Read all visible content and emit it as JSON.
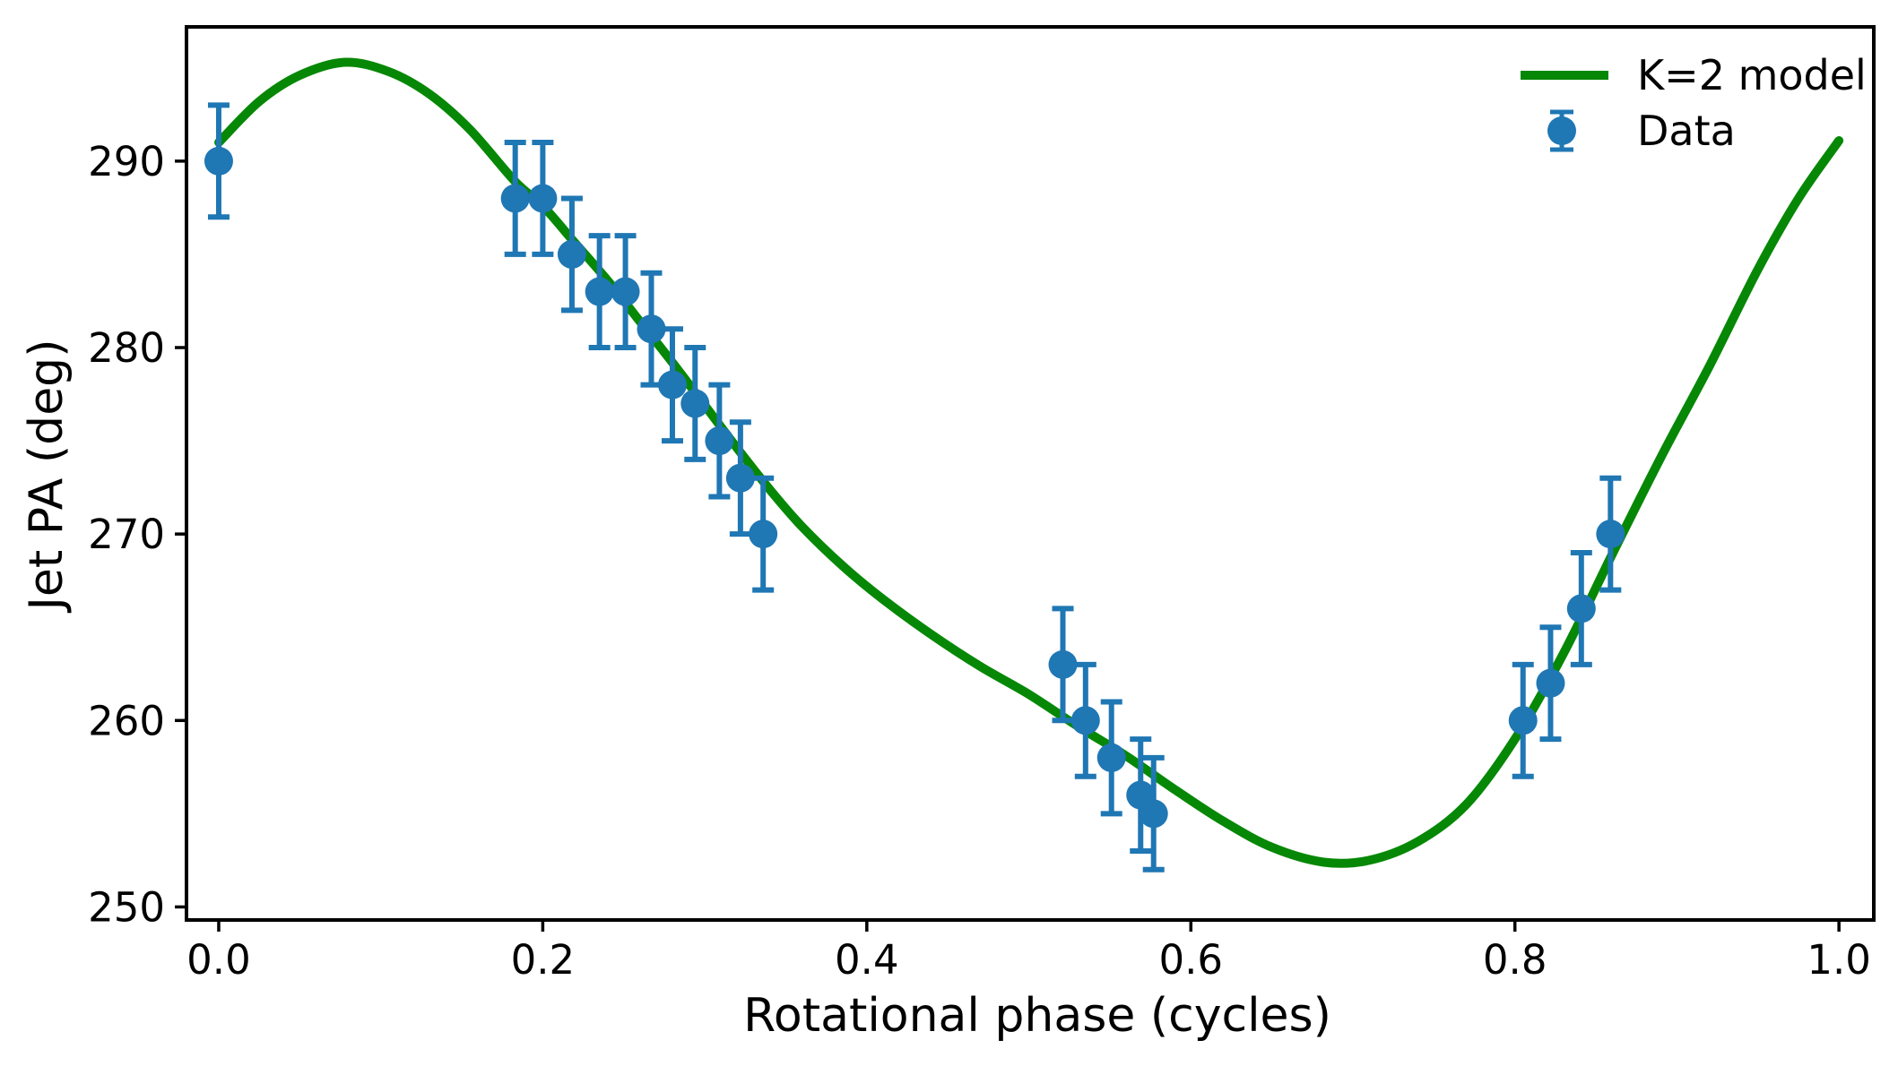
{
  "axes": {
    "xlabel": "Rotational phase (cycles)",
    "ylabel": "Jet PA (deg)",
    "xlim": [
      -0.0199,
      1.0215
    ],
    "ylim": [
      249.3,
      297.2
    ],
    "x_tick_values": [
      0.0,
      0.2,
      0.4,
      0.6,
      0.8,
      1.0
    ],
    "x_tick_labels": [
      "0.0",
      "0.2",
      "0.4",
      "0.6",
      "0.8",
      "1.0"
    ],
    "y_tick_values": [
      250,
      260,
      270,
      280,
      290
    ],
    "y_tick_labels": [
      "250",
      "260",
      "270",
      "280",
      "290"
    ],
    "spine_color": "#000000",
    "tick_label_color": "#000000",
    "grid": false
  },
  "legend": {
    "position": "upper right",
    "entries": [
      {
        "label": "K=2 model",
        "type": "line",
        "color": "#068806"
      },
      {
        "label": "Data",
        "type": "errorbar-marker",
        "color": "#1f77b4"
      }
    ]
  },
  "chart_data": {
    "type": "line+scatter",
    "title": "",
    "xlabel": "Rotational phase (cycles)",
    "ylabel": "Jet PA (deg)",
    "xlim": [
      -0.0199,
      1.0215
    ],
    "ylim": [
      249.3,
      297.2
    ],
    "legend_position": "upper right",
    "grid": false,
    "series": [
      {
        "name": "K=2 model",
        "type": "line",
        "color": "#068806",
        "x": [
          0.0,
          0.025,
          0.05,
          0.078,
          0.105,
          0.13,
          0.155,
          0.183,
          0.2,
          0.22,
          0.24,
          0.26,
          0.28,
          0.3,
          0.32,
          0.34,
          0.36,
          0.385,
          0.41,
          0.44,
          0.47,
          0.5,
          0.53,
          0.56,
          0.59,
          0.62,
          0.65,
          0.682,
          0.71,
          0.74,
          0.77,
          0.8,
          0.83,
          0.86,
          0.89,
          0.92,
          0.95,
          0.975,
          1.0
        ],
        "y": [
          291.0,
          293.2,
          294.6,
          295.3,
          294.8,
          293.6,
          291.7,
          288.9,
          287.6,
          285.6,
          283.6,
          281.4,
          279.2,
          276.9,
          274.6,
          272.4,
          270.4,
          268.3,
          266.5,
          264.6,
          262.9,
          261.4,
          259.7,
          258.1,
          256.3,
          254.6,
          253.2,
          252.4,
          252.5,
          253.5,
          255.5,
          259.0,
          263.6,
          268.9,
          274.1,
          279.0,
          284.2,
          288.0,
          291.1
        ]
      },
      {
        "name": "Data",
        "type": "scatter",
        "color": "#1f77b4",
        "marker": "circle",
        "yerr": 3,
        "x": [
          0.0,
          0.183,
          0.2,
          0.218,
          0.235,
          0.251,
          0.267,
          0.28,
          0.294,
          0.309,
          0.322,
          0.336,
          0.521,
          0.535,
          0.551,
          0.569,
          0.577,
          0.805,
          0.822,
          0.841,
          0.859
        ],
        "y": [
          290,
          288,
          288,
          285,
          283,
          283,
          281,
          278,
          277,
          275,
          273,
          270,
          263,
          260,
          258,
          256,
          255,
          260,
          262,
          266,
          270
        ]
      }
    ]
  }
}
